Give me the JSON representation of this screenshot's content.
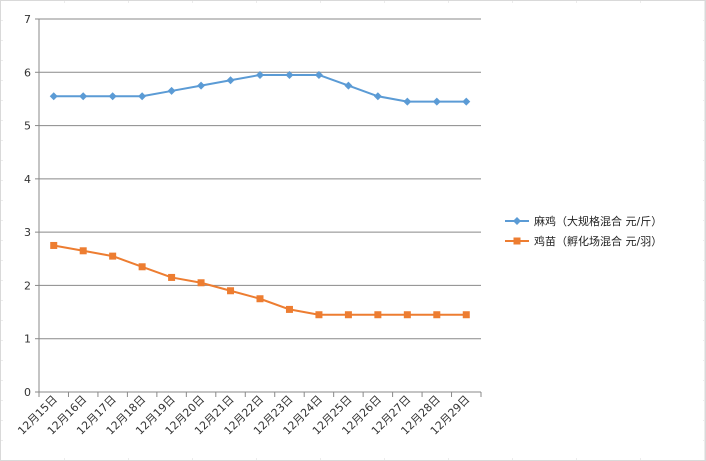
{
  "chart_data": {
    "type": "line",
    "title": "",
    "xlabel": "",
    "ylabel": "",
    "ylim": [
      0,
      7
    ],
    "y_ticks": [
      0,
      1,
      2,
      3,
      4,
      5,
      6,
      7
    ],
    "grid": "horizontal",
    "legend_position": "right",
    "categories": [
      "12月15日",
      "12月16日",
      "12月17日",
      "12月18日",
      "12月19日",
      "12月20日",
      "12月21日",
      "12月22日",
      "12月23日",
      "12月24日",
      "12月25日",
      "12月26日",
      "12月27日",
      "12月28日",
      "12月29日"
    ],
    "series": [
      {
        "name": "麻鸡（大规格混合 元/斤）",
        "color": "#5b9bd5",
        "marker": "diamond",
        "values": [
          5.55,
          5.55,
          5.55,
          5.55,
          5.65,
          5.75,
          5.85,
          5.95,
          5.95,
          5.95,
          5.75,
          5.55,
          5.45,
          5.45,
          5.45
        ]
      },
      {
        "name": "鸡苗（孵化场混合 元/羽）",
        "color": "#ed7d31",
        "marker": "square",
        "values": [
          2.75,
          2.65,
          2.55,
          2.35,
          2.15,
          2.05,
          1.9,
          1.75,
          1.55,
          1.45,
          1.45,
          1.45,
          1.45,
          1.45,
          1.45
        ]
      }
    ]
  }
}
